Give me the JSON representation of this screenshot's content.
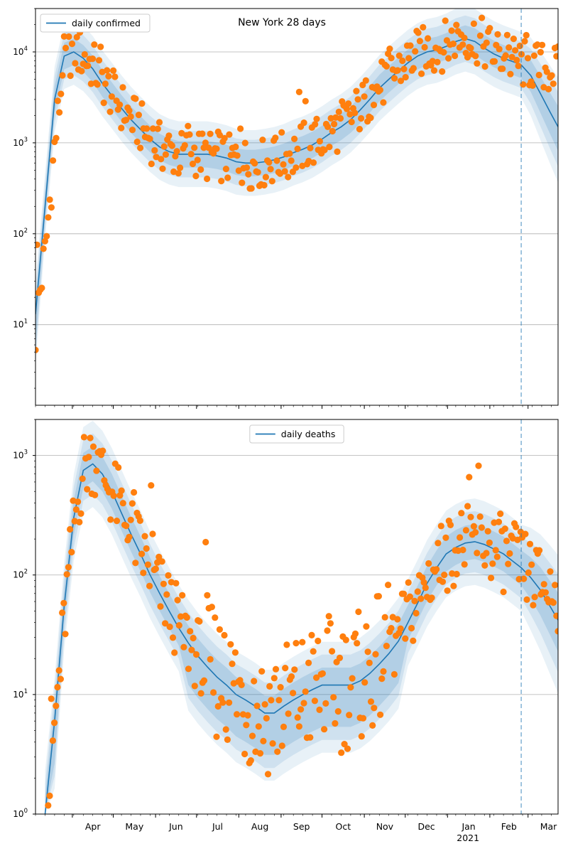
{
  "figure_title": "New York 28 days",
  "colors": {
    "model_line": "#1f77b4",
    "band": "#1f77b4",
    "observed_points": "#ff7f0e",
    "grid": "#b0b0b0",
    "marker_line": "#1f77b4"
  },
  "x_axis": {
    "month_labels": [
      "Apr",
      "May",
      "Jun",
      "Jul",
      "Aug",
      "Sep",
      "Oct",
      "Nov",
      "Dec",
      "Jan",
      "Feb",
      "Mar"
    ],
    "year_label": "2021",
    "data_start": "2020-03-05",
    "data_end": "2021-03-23",
    "forecast_start": "2021-02-24"
  },
  "chart_data": [
    {
      "type": "line",
      "panel": "top",
      "title": "New York 28 days",
      "legend": [
        "daily confirmed"
      ],
      "legend_placement": "top-left",
      "y_scale": "log",
      "ylim": [
        1.3,
        30000
      ],
      "y_ticks": [
        "10^1",
        "10^2",
        "10^3",
        "10^4"
      ],
      "y_tick_values": [
        10,
        100,
        1000,
        10000
      ],
      "grid": "horizontal",
      "x_dates": [
        "2020-03-05",
        "2020-03-12",
        "2020-03-19",
        "2020-03-26",
        "2020-04-02",
        "2020-04-09",
        "2020-04-16",
        "2020-04-23",
        "2020-04-30",
        "2020-05-07",
        "2020-05-14",
        "2020-05-21",
        "2020-05-28",
        "2020-06-04",
        "2020-06-11",
        "2020-06-18",
        "2020-06-25",
        "2020-07-02",
        "2020-07-09",
        "2020-07-16",
        "2020-07-23",
        "2020-07-30",
        "2020-08-06",
        "2020-08-13",
        "2020-08-20",
        "2020-08-27",
        "2020-09-03",
        "2020-09-10",
        "2020-09-17",
        "2020-09-24",
        "2020-10-01",
        "2020-10-08",
        "2020-10-15",
        "2020-10-22",
        "2020-10-29",
        "2020-11-05",
        "2020-11-12",
        "2020-11-19",
        "2020-11-26",
        "2020-12-03",
        "2020-12-10",
        "2020-12-17",
        "2020-12-24",
        "2020-12-31",
        "2021-01-07",
        "2021-01-14",
        "2021-01-21",
        "2021-01-28",
        "2021-02-04",
        "2021-02-11",
        "2021-02-18",
        "2021-02-24",
        "2021-03-03",
        "2021-03-10",
        "2021-03-17",
        "2021-03-23"
      ],
      "series": [
        {
          "name": "daily confirmed",
          "kind": "model",
          "values": [
            13,
            200,
            3000,
            9000,
            10000,
            8500,
            6500,
            4500,
            3300,
            2400,
            1800,
            1400,
            1100,
            900,
            800,
            750,
            750,
            750,
            750,
            720,
            680,
            620,
            600,
            600,
            620,
            650,
            700,
            780,
            850,
            950,
            1100,
            1300,
            1500,
            1800,
            2300,
            3000,
            4000,
            5000,
            6200,
            7600,
            9000,
            10000,
            10500,
            11500,
            13000,
            14000,
            13000,
            11000,
            9500,
            8500,
            7800,
            7200,
            5500,
            3500,
            2200,
            1500
          ]
        },
        {
          "name": "observed",
          "kind": "points",
          "values": [
            11,
            60,
            900,
            8000,
            11000,
            9000,
            7000,
            5000,
            3500,
            2500,
            1900,
            1500,
            1150,
            900,
            850,
            700,
            800,
            780,
            700,
            740,
            650,
            650,
            600,
            580,
            600,
            650,
            720,
            760,
            900,
            1000,
            1100,
            1300,
            1600,
            1900,
            2400,
            3200,
            4200,
            5200,
            6500,
            8000,
            9500,
            10500,
            11000,
            12000,
            14500,
            15500,
            14000,
            12000,
            10000,
            9000,
            8000,
            7500,
            7000,
            6800,
            6500,
            6200
          ]
        }
      ]
    },
    {
      "type": "line",
      "panel": "bottom",
      "legend": [
        "daily deaths"
      ],
      "legend_placement": "top-center",
      "y_scale": "log",
      "ylim": [
        1,
        2000
      ],
      "y_ticks": [
        "10^0",
        "10^1",
        "10^2",
        "10^3"
      ],
      "y_tick_values": [
        1,
        10,
        100,
        1000
      ],
      "grid": "horizontal",
      "x_dates": [
        "2020-03-05",
        "2020-03-12",
        "2020-03-19",
        "2020-03-26",
        "2020-04-02",
        "2020-04-09",
        "2020-04-16",
        "2020-04-23",
        "2020-04-30",
        "2020-05-07",
        "2020-05-14",
        "2020-05-21",
        "2020-05-28",
        "2020-06-04",
        "2020-06-11",
        "2020-06-18",
        "2020-06-25",
        "2020-07-02",
        "2020-07-09",
        "2020-07-16",
        "2020-07-23",
        "2020-07-30",
        "2020-08-06",
        "2020-08-13",
        "2020-08-20",
        "2020-08-27",
        "2020-09-03",
        "2020-09-10",
        "2020-09-17",
        "2020-09-24",
        "2020-10-01",
        "2020-10-08",
        "2020-10-15",
        "2020-10-22",
        "2020-10-29",
        "2020-11-05",
        "2020-11-12",
        "2020-11-19",
        "2020-11-26",
        "2020-12-03",
        "2020-12-10",
        "2020-12-17",
        "2020-12-24",
        "2020-12-31",
        "2021-01-07",
        "2021-01-14",
        "2021-01-21",
        "2021-01-28",
        "2021-02-04",
        "2021-02-11",
        "2021-02-18",
        "2021-02-24",
        "2021-03-03",
        "2021-03-10",
        "2021-03-17",
        "2021-03-23"
      ],
      "series": [
        {
          "name": "daily deaths",
          "kind": "model",
          "values": [
            null,
            1,
            6,
            55,
            300,
            750,
            850,
            700,
            500,
            330,
            220,
            150,
            100,
            70,
            50,
            36,
            27,
            21,
            17,
            14,
            12,
            10,
            9,
            8,
            7,
            7,
            8,
            9,
            10,
            11,
            12,
            12,
            12,
            12,
            13,
            15,
            18,
            22,
            28,
            40,
            58,
            85,
            115,
            150,
            170,
            185,
            190,
            180,
            165,
            150,
            130,
            115,
            95,
            75,
            55,
            42
          ]
        },
        {
          "name": "observed",
          "kind": "points",
          "values": [
            null,
            1,
            5,
            40,
            250,
            800,
            1000,
            700,
            500,
            350,
            230,
            160,
            110,
            75,
            55,
            38,
            28,
            22,
            18,
            15,
            13,
            11,
            9,
            8,
            7,
            8,
            8,
            9,
            10,
            11,
            12,
            13,
            12,
            13,
            14,
            16,
            19,
            23,
            30,
            45,
            60,
            90,
            120,
            150,
            175,
            190,
            195,
            185,
            170,
            150,
            135,
            120,
            100,
            85,
            75,
            65
          ]
        }
      ]
    }
  ]
}
